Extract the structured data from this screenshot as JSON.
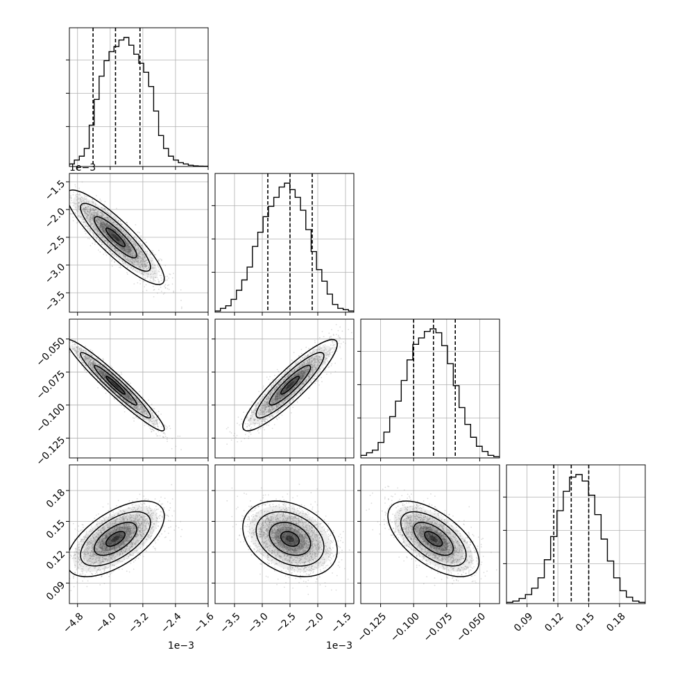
{
  "chart_data": {
    "type": "corner",
    "n_params": 4,
    "offset_labels": [
      "1e−3",
      "1e−3"
    ],
    "y_offset_label": "1e−3",
    "ranges": [
      [
        -5.0,
        -1.6
      ],
      [
        -3.85,
        -1.35
      ],
      [
        -0.14,
        -0.035
      ],
      [
        0.07,
        0.205
      ]
    ],
    "tick_values": [
      [
        -4.8,
        -4.0,
        -3.2,
        -2.4,
        -1.6
      ],
      [
        -3.5,
        -3.0,
        -2.5,
        -2.0,
        -1.5
      ],
      [
        -0.125,
        -0.1,
        -0.075,
        -0.05
      ],
      [
        0.09,
        0.12,
        0.15,
        0.18
      ]
    ],
    "tick_labels": [
      [
        "−4.8",
        "−4.0",
        "−3.2",
        "−2.4",
        "−1.6"
      ],
      [
        "−3.5",
        "−3.0",
        "−2.5",
        "−2.0",
        "−1.5"
      ],
      [
        "−0.125",
        "−0.100",
        "−0.075",
        "−0.050"
      ],
      [
        "0.09",
        "0.12",
        "0.15",
        "0.18"
      ]
    ],
    "quantiles": [
      [
        -4.42,
        -3.87,
        -3.27
      ],
      [
        -2.9,
        -2.5,
        -2.1
      ],
      [
        -0.1,
        -0.085,
        -0.0685
      ],
      [
        0.116,
        0.133,
        0.15
      ]
    ],
    "histograms": [
      [
        0.02,
        0.05,
        0.08,
        0.14,
        0.32,
        0.52,
        0.7,
        0.82,
        0.89,
        0.93,
        0.98,
        1.0,
        0.94,
        0.87,
        0.8,
        0.73,
        0.62,
        0.43,
        0.24,
        0.14,
        0.08,
        0.05,
        0.03,
        0.02,
        0.01,
        0.005,
        0.003,
        0.002
      ],
      [
        0.01,
        0.03,
        0.05,
        0.1,
        0.17,
        0.25,
        0.35,
        0.51,
        0.62,
        0.74,
        0.82,
        0.89,
        0.97,
        1.0,
        0.95,
        0.89,
        0.79,
        0.64,
        0.47,
        0.33,
        0.24,
        0.14,
        0.06,
        0.03,
        0.02,
        0.01
      ],
      [
        0.02,
        0.04,
        0.06,
        0.12,
        0.2,
        0.32,
        0.44,
        0.6,
        0.76,
        0.88,
        0.93,
        0.98,
        1.0,
        0.97,
        0.87,
        0.73,
        0.56,
        0.39,
        0.26,
        0.16,
        0.09,
        0.05,
        0.02,
        0.01
      ],
      [
        0.01,
        0.02,
        0.04,
        0.07,
        0.12,
        0.2,
        0.34,
        0.52,
        0.72,
        0.87,
        0.98,
        1.0,
        0.95,
        0.84,
        0.69,
        0.5,
        0.33,
        0.2,
        0.1,
        0.05,
        0.02,
        0.01
      ]
    ],
    "correlations": [
      [
        1.0,
        -0.88,
        -0.96,
        0.6
      ],
      [
        -0.88,
        1.0,
        0.9,
        -0.3
      ],
      [
        -0.96,
        0.9,
        1.0,
        -0.6
      ],
      [
        0.6,
        -0.3,
        -0.6,
        1.0
      ]
    ],
    "means": [
      -3.87,
      -2.5,
      -0.085,
      0.133
    ],
    "stds": [
      0.52,
      0.37,
      0.015,
      0.016
    ],
    "grid": true,
    "colors": {
      "line": "#000000",
      "points": "#999999",
      "grid": "#b0b0b0",
      "density": "#000000"
    }
  }
}
